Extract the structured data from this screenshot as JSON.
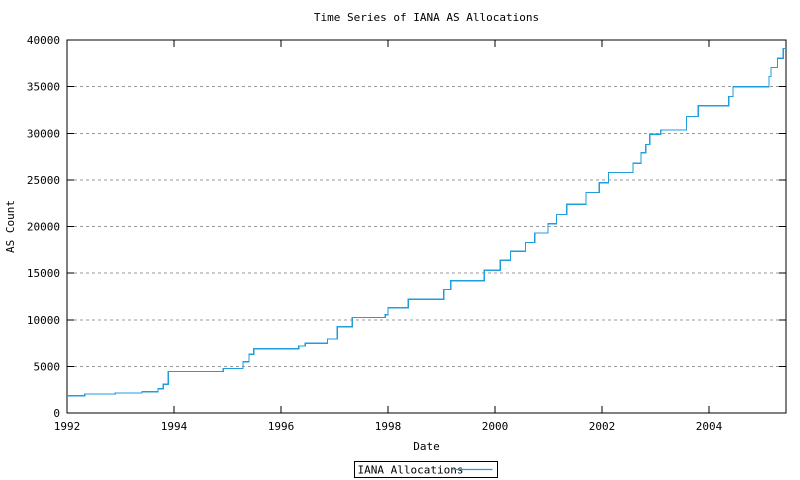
{
  "title": "Time Series of IANA AS Allocations",
  "colors": {
    "background": "#ffffff",
    "line": "#1f9ede",
    "grid": "#999999",
    "axis": "#000000",
    "text": "#000000"
  },
  "legend": {
    "label": "IANA Allocations"
  },
  "chart_data": {
    "type": "line",
    "line_style": "step-after",
    "title": "Time Series of IANA AS Allocations",
    "xlabel": "Date",
    "ylabel": "AS Count",
    "xlim": [
      1992,
      2005.44
    ],
    "ylim": [
      0,
      40000
    ],
    "xticks": [
      1992,
      1994,
      1996,
      1998,
      2000,
      2002,
      2004
    ],
    "yticks": [
      0,
      5000,
      10000,
      15000,
      20000,
      25000,
      30000,
      35000,
      40000
    ],
    "grid": "horizontal-dashed",
    "legend_position": "bottom-center-boxed",
    "series": [
      {
        "name": "IANA Allocations",
        "color": "#1f9ede",
        "points": [
          [
            1992.0,
            1870
          ],
          [
            1992.33,
            2050
          ],
          [
            1992.9,
            2150
          ],
          [
            1993.4,
            2300
          ],
          [
            1993.7,
            2600
          ],
          [
            1993.8,
            3100
          ],
          [
            1993.89,
            4450
          ],
          [
            1994.92,
            4780
          ],
          [
            1995.29,
            5500
          ],
          [
            1995.4,
            6300
          ],
          [
            1995.49,
            6900
          ],
          [
            1996.33,
            7200
          ],
          [
            1996.45,
            7500
          ],
          [
            1996.87,
            7950
          ],
          [
            1997.05,
            9250
          ],
          [
            1997.33,
            10250
          ],
          [
            1997.95,
            10550
          ],
          [
            1998.0,
            11300
          ],
          [
            1998.38,
            12200
          ],
          [
            1999.04,
            13250
          ],
          [
            1999.17,
            14200
          ],
          [
            1999.8,
            15300
          ],
          [
            2000.1,
            16400
          ],
          [
            2000.29,
            17350
          ],
          [
            2000.57,
            18300
          ],
          [
            2000.74,
            19300
          ],
          [
            2000.99,
            20300
          ],
          [
            2001.15,
            21300
          ],
          [
            2001.34,
            22400
          ],
          [
            2001.7,
            23650
          ],
          [
            2001.95,
            24700
          ],
          [
            2002.12,
            25800
          ],
          [
            2002.58,
            26800
          ],
          [
            2002.73,
            27900
          ],
          [
            2002.82,
            28800
          ],
          [
            2002.89,
            29900
          ],
          [
            2003.1,
            30350
          ],
          [
            2003.58,
            31800
          ],
          [
            2003.8,
            32950
          ],
          [
            2004.37,
            33950
          ],
          [
            2004.45,
            35000
          ],
          [
            2005.12,
            36100
          ],
          [
            2005.16,
            37050
          ],
          [
            2005.28,
            38050
          ],
          [
            2005.39,
            39100
          ]
        ]
      }
    ]
  }
}
